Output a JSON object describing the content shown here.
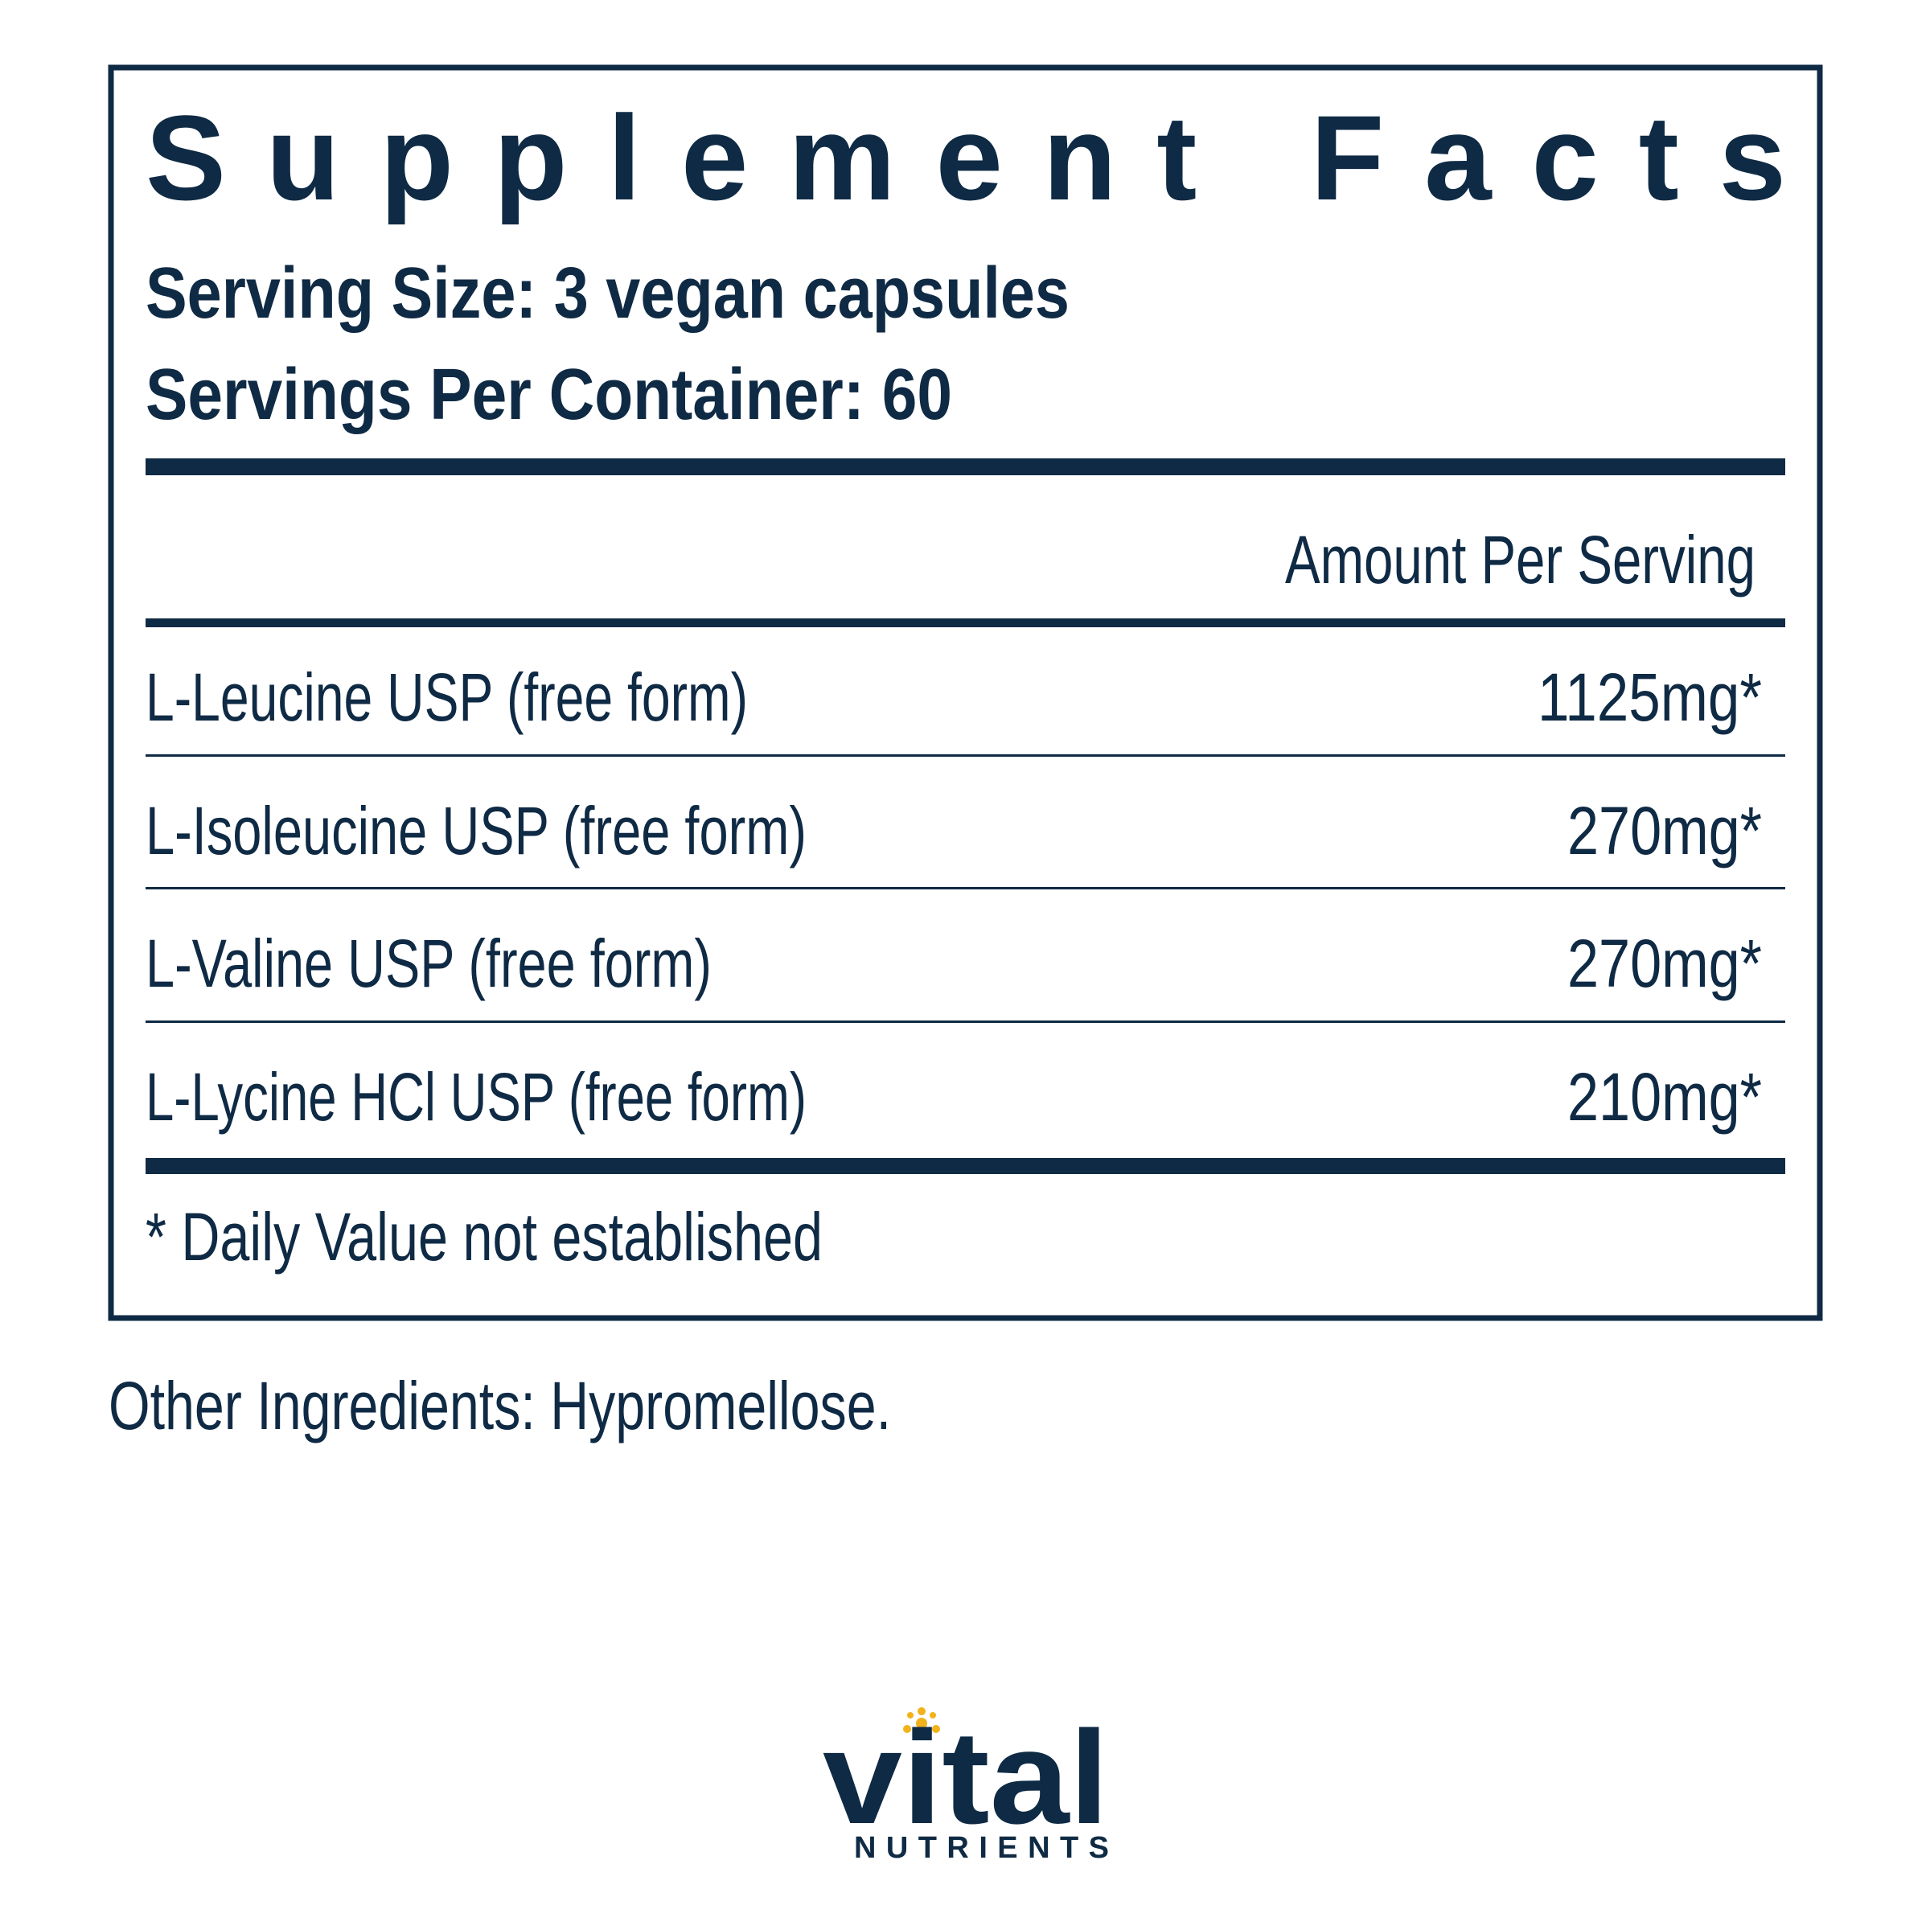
{
  "title": "Supplement Facts",
  "serving_size": "Serving Size: 3 vegan capsules",
  "servings_per_container": "Servings Per Container: 60",
  "amount_header": "Amount Per Serving",
  "rows": [
    [
      "L-Leucine USP (free form)",
      "1125mg*"
    ],
    [
      "L-Isoleucine USP (free form)",
      "270mg*"
    ],
    [
      "L-Valine USP (free form)",
      "270mg*"
    ],
    [
      "L-Lycine HCl USP (free form)",
      "210mg*"
    ]
  ],
  "footnote": "* Daily Value not established",
  "other_ingredients": "Other Ingredients: Hypromellose.",
  "brand": {
    "name": "vital",
    "subtitle": "NUTRIENTS"
  }
}
